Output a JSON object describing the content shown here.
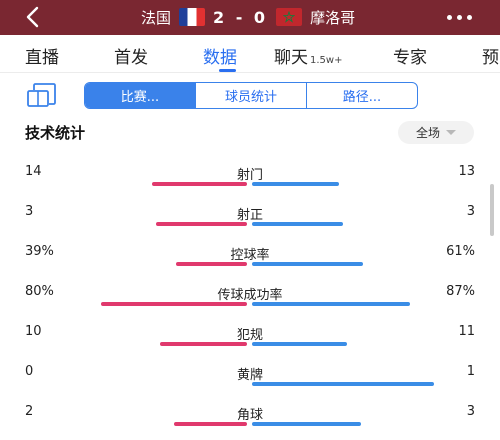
{
  "header": {
    "home_team": "法国",
    "away_team": "摩洛哥",
    "score": "2 - 0",
    "icons": [
      "back-icon",
      "flag-france-icon",
      "flag-morocco-icon",
      "more-icon"
    ],
    "colors": {
      "background": "#7a2731",
      "text": "#ffffff"
    }
  },
  "tabs": [
    {
      "label": "直播",
      "sub": ""
    },
    {
      "label": "首发",
      "sub": ""
    },
    {
      "label": "数据",
      "sub": "",
      "active": true
    },
    {
      "label": "聊天",
      "sub": "1.5w+"
    },
    {
      "label": "专家",
      "sub": ""
    },
    {
      "label": "预",
      "sub": ""
    }
  ],
  "segments": [
    {
      "label": "比赛...",
      "active": true
    },
    {
      "label": "球员统计",
      "active": false
    },
    {
      "label": "路径...",
      "active": false
    }
  ],
  "section": {
    "title": "技术统计",
    "scope": "全场"
  },
  "stats": [
    {
      "label": "射门",
      "home": "14",
      "away": "13",
      "home_share": 0.52,
      "away_share": 0.48
    },
    {
      "label": "射正",
      "home": "3",
      "away": "3",
      "home_share": 0.5,
      "away_share": 0.5
    },
    {
      "label": "控球率",
      "home": "39%",
      "away": "61%",
      "home_share": 0.39,
      "away_share": 0.61
    },
    {
      "label": "传球成功率",
      "home": "80%",
      "away": "87%",
      "home_share": 0.8,
      "away_share": 0.87
    },
    {
      "label": "犯规",
      "home": "10",
      "away": "11",
      "home_share": 0.48,
      "away_share": 0.52
    },
    {
      "label": "黄牌",
      "home": "0",
      "away": "1",
      "home_share": 0.0,
      "away_share": 1.0
    },
    {
      "label": "角球",
      "home": "2",
      "away": "3",
      "home_share": 0.4,
      "away_share": 0.6
    }
  ],
  "colors": {
    "accent": "#2a6ff0",
    "home_bar": "#e0396d",
    "away_bar": "#3a8de6"
  }
}
